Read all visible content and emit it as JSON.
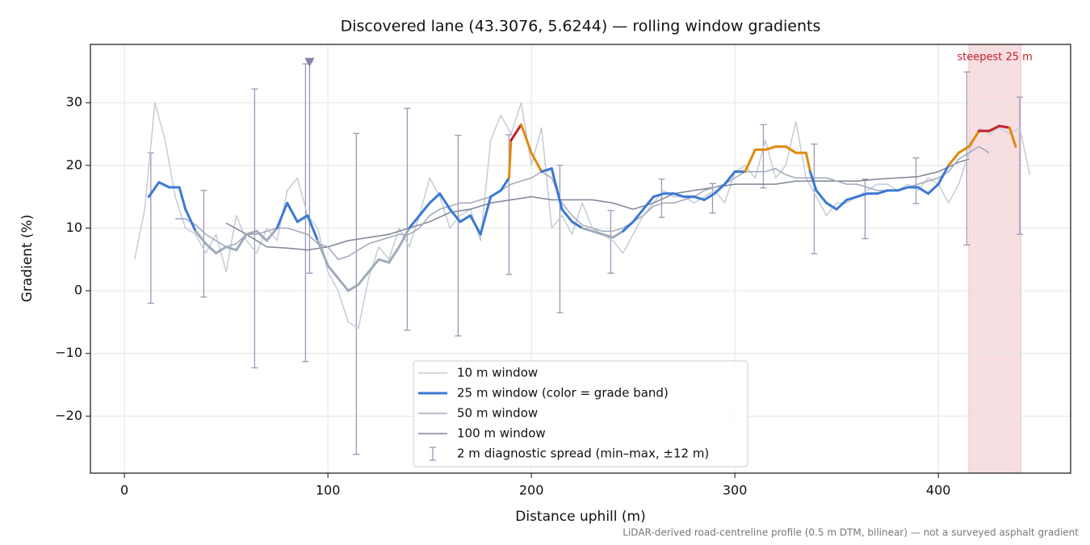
{
  "chart_data": {
    "type": "line",
    "title": "Discovered lane (43.3076, 5.6244) — rolling window gradients",
    "x_label": "Distance uphill (m)",
    "y_label": "Gradient (%)",
    "note": "LiDAR-derived road-centreline profile (0.5 m DTM, bilinear) — not a surveyed asphalt gradient",
    "xlim": [
      -16.7,
      465
    ],
    "ylim": [
      -29.1,
      39.3
    ],
    "xticks": [
      0,
      100,
      200,
      300,
      400
    ],
    "yticks": [
      {
        "value": -20,
        "label": "−20"
      },
      {
        "value": -10,
        "label": "−10"
      },
      0,
      10,
      20,
      30
    ],
    "grid": true,
    "legend": "lower center",
    "series": [
      {
        "name": "10 m window",
        "color": "#c5ccd5",
        "x": [
          5,
          10,
          15,
          20,
          25,
          30,
          35,
          40,
          45,
          50,
          55,
          60,
          65,
          70,
          75,
          80,
          85,
          90,
          95,
          100,
          105,
          110,
          115,
          120,
          125,
          130,
          135,
          140,
          145,
          150,
          155,
          160,
          165,
          170,
          175,
          180,
          185,
          190,
          195,
          200,
          205,
          210,
          215,
          220,
          225,
          230,
          235,
          240,
          245,
          250,
          255,
          260,
          265,
          270,
          275,
          280,
          285,
          290,
          295,
          300,
          305,
          310,
          315,
          320,
          325,
          330,
          335,
          340,
          345,
          350,
          355,
          360,
          365,
          370,
          375,
          380,
          385,
          390,
          395,
          400,
          405,
          410,
          415,
          420,
          425,
          430,
          435,
          440,
          445
        ],
        "values": [
          5,
          13,
          30,
          24,
          15,
          10,
          9,
          6,
          9,
          3,
          12,
          8,
          6,
          10,
          8,
          16,
          18,
          12,
          10,
          3,
          0,
          -5,
          -6,
          2,
          7,
          5,
          10,
          7,
          12,
          18,
          15,
          10,
          12,
          13,
          8,
          24,
          28,
          25,
          30,
          20,
          26,
          10,
          12,
          9,
          14,
          10,
          9,
          8,
          6,
          9,
          12,
          14,
          16,
          15,
          15,
          14,
          15,
          16,
          14,
          19,
          20,
          18,
          24,
          18,
          20,
          27,
          18,
          15,
          12,
          14,
          14,
          15,
          16,
          17,
          17,
          16,
          17,
          16,
          18,
          17,
          14,
          17,
          22,
          26,
          25,
          26,
          25,
          26,
          18.5
        ]
      },
      {
        "name": "25 m window (color = grade band)",
        "color": "#3a78d6",
        "x": [
          12,
          17,
          22,
          27,
          30,
          35,
          40,
          45,
          50,
          55,
          60,
          65,
          70,
          75,
          80,
          85,
          90,
          95,
          100,
          105,
          110,
          115,
          120,
          125,
          130,
          135,
          140,
          145,
          150,
          155,
          160,
          165,
          170,
          175,
          180,
          185,
          189,
          190,
          195,
          200,
          205,
          210,
          215,
          220,
          225,
          230,
          235,
          240,
          245,
          250,
          255,
          260,
          265,
          270,
          275,
          280,
          285,
          290,
          295,
          300,
          305,
          310,
          315,
          320,
          325,
          330,
          335,
          337,
          340,
          345,
          350,
          355,
          360,
          365,
          370,
          375,
          380,
          385,
          390,
          395,
          400,
          405,
          410,
          415,
          420,
          425,
          430,
          435,
          438
        ],
        "values": [
          15,
          17.3,
          16.5,
          16.5,
          13,
          9.5,
          7.5,
          6,
          7,
          6.5,
          9,
          9.5,
          8,
          10,
          14,
          11,
          12,
          8,
          4,
          2,
          0,
          1,
          3,
          5,
          4.5,
          7,
          10,
          12,
          14,
          15.5,
          13,
          11,
          12,
          9,
          15,
          16,
          18,
          24,
          26.5,
          22,
          19,
          19.5,
          13,
          11,
          10,
          9.5,
          9,
          8.5,
          9.5,
          11,
          13,
          15,
          15.5,
          15.5,
          15,
          15,
          14.5,
          15.5,
          17,
          19,
          19,
          22.5,
          22.5,
          23,
          23,
          22,
          22,
          19,
          16,
          14,
          13,
          14.5,
          15,
          15.5,
          15.5,
          16,
          16,
          16.5,
          16.5,
          15.5,
          17,
          20,
          22,
          23,
          25.5,
          25.5,
          26.3,
          26,
          23
        ]
      },
      {
        "name": "50 m window",
        "color": "#a2a8bc",
        "x": [
          25,
          30,
          35,
          40,
          45,
          50,
          55,
          60,
          65,
          70,
          75,
          80,
          85,
          90,
          95,
          100,
          105,
          110,
          115,
          120,
          125,
          130,
          135,
          140,
          145,
          150,
          155,
          160,
          165,
          170,
          175,
          180,
          185,
          190,
          195,
          200,
          205,
          210,
          215,
          220,
          225,
          230,
          235,
          240,
          245,
          250,
          255,
          260,
          265,
          270,
          275,
          280,
          285,
          290,
          295,
          300,
          305,
          310,
          315,
          320,
          325,
          330,
          335,
          340,
          345,
          350,
          355,
          360,
          365,
          370,
          375,
          380,
          385,
          390,
          395,
          400,
          405,
          410,
          415,
          420,
          425
        ],
        "values": [
          11.5,
          11.5,
          10.5,
          9,
          8,
          7,
          7.5,
          9,
          9,
          9.5,
          10,
          10,
          9.5,
          9,
          7.5,
          7,
          5,
          5.5,
          6.5,
          7.5,
          8,
          8.5,
          9,
          9,
          10,
          12,
          13,
          13.5,
          14,
          14,
          14.5,
          15,
          16,
          17,
          17.5,
          18,
          19,
          18,
          14,
          12,
          10.5,
          10,
          9.5,
          9.5,
          10,
          11,
          12,
          13.5,
          14,
          14,
          14.5,
          15,
          16,
          16.5,
          17,
          18,
          19,
          19,
          19,
          19.5,
          18.5,
          18,
          18,
          18,
          18,
          17.5,
          17,
          17,
          16.5,
          16,
          16,
          16,
          16.5,
          17,
          17.5,
          18,
          19,
          21,
          22,
          23,
          22
        ]
      },
      {
        "name": "100 m window",
        "color": "#7d8494",
        "x": [
          50,
          60,
          70,
          80,
          90,
          100,
          110,
          120,
          130,
          140,
          150,
          160,
          170,
          180,
          190,
          200,
          210,
          220,
          230,
          240,
          250,
          260,
          270,
          280,
          290,
          300,
          310,
          320,
          330,
          340,
          350,
          360,
          370,
          380,
          390,
          400,
          410,
          415
        ],
        "values": [
          10.8,
          9,
          7,
          6.8,
          6.5,
          7,
          8,
          8.5,
          9,
          10,
          11,
          12.5,
          13,
          14,
          14.5,
          15,
          14.5,
          14.5,
          14.5,
          14,
          13,
          14,
          15.5,
          16,
          16.5,
          17,
          17,
          17,
          17.5,
          17.5,
          17.5,
          17.5,
          17.8,
          18,
          18.2,
          19,
          20.5,
          21
        ]
      }
    ],
    "grade_bands": [
      {
        "below": 10,
        "color": "#9eabba"
      },
      {
        "below": 20,
        "color": "#3a78d6"
      },
      {
        "below": 25,
        "color": "#e08a0b"
      },
      {
        "below": 100,
        "color": "#c0202a"
      }
    ],
    "errorbars": {
      "name": "2 m diagnostic spread (min–max, ±12 m)",
      "color": "#9c97b8",
      "x": [
        13,
        39,
        64,
        89,
        91,
        114,
        139,
        164,
        189,
        214,
        239,
        264,
        289,
        314,
        339,
        364,
        389,
        414,
        440
      ],
      "low": [
        -2,
        -1,
        -12.3,
        -11.3,
        2.8,
        -26.1,
        -6.3,
        -7.2,
        2.6,
        -3.5,
        2.8,
        11.7,
        12.4,
        16.4,
        5.9,
        8.3,
        13.9,
        7.3,
        9
      ],
      "high": [
        22,
        16,
        32.2,
        36.2,
        36.5,
        25.1,
        29.1,
        24.8,
        24.9,
        20,
        12.8,
        17.8,
        17.1,
        26.5,
        23.4,
        17.8,
        21.2,
        34.9,
        30.9
      ]
    },
    "outlier_markers": {
      "color": "#8a7fa8",
      "x": [
        91
      ],
      "y": [
        36.5
      ]
    },
    "span": {
      "x": [
        415,
        440.5
      ],
      "label": "steepest 25 m",
      "color": "#e8a0a8",
      "label_color": "#c0202a"
    }
  }
}
